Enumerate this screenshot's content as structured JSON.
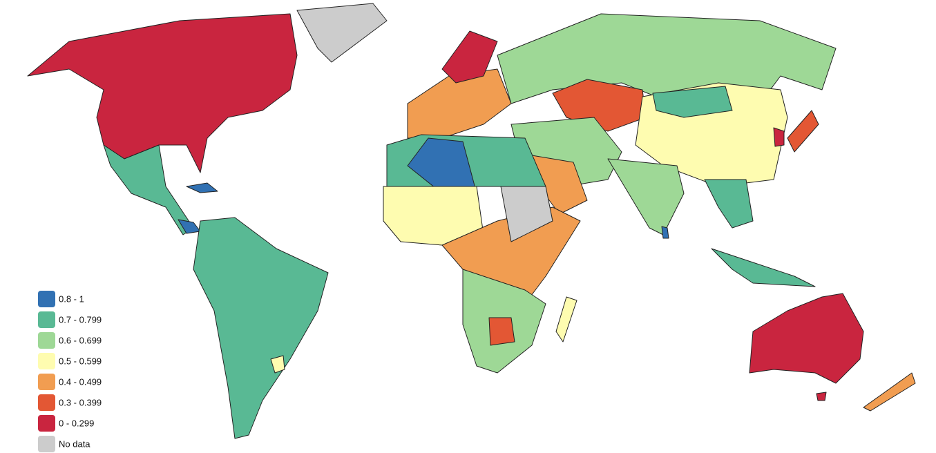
{
  "legend": {
    "items": [
      {
        "label": "0.8 - 1",
        "color": "#3171b3"
      },
      {
        "label": "0.7 - 0.799",
        "color": "#59b994"
      },
      {
        "label": "0.6 - 0.699",
        "color": "#9ed896"
      },
      {
        "label": "0.5 - 0.599",
        "color": "#fefcb0"
      },
      {
        "label": "0.4 - 0.499",
        "color": "#f19d51"
      },
      {
        "label": "0.3 - 0.399",
        "color": "#e35734"
      },
      {
        "label": "0 - 0.299",
        "color": "#c9253f"
      },
      {
        "label": "No data",
        "color": "#cccccc"
      }
    ]
  }
}
